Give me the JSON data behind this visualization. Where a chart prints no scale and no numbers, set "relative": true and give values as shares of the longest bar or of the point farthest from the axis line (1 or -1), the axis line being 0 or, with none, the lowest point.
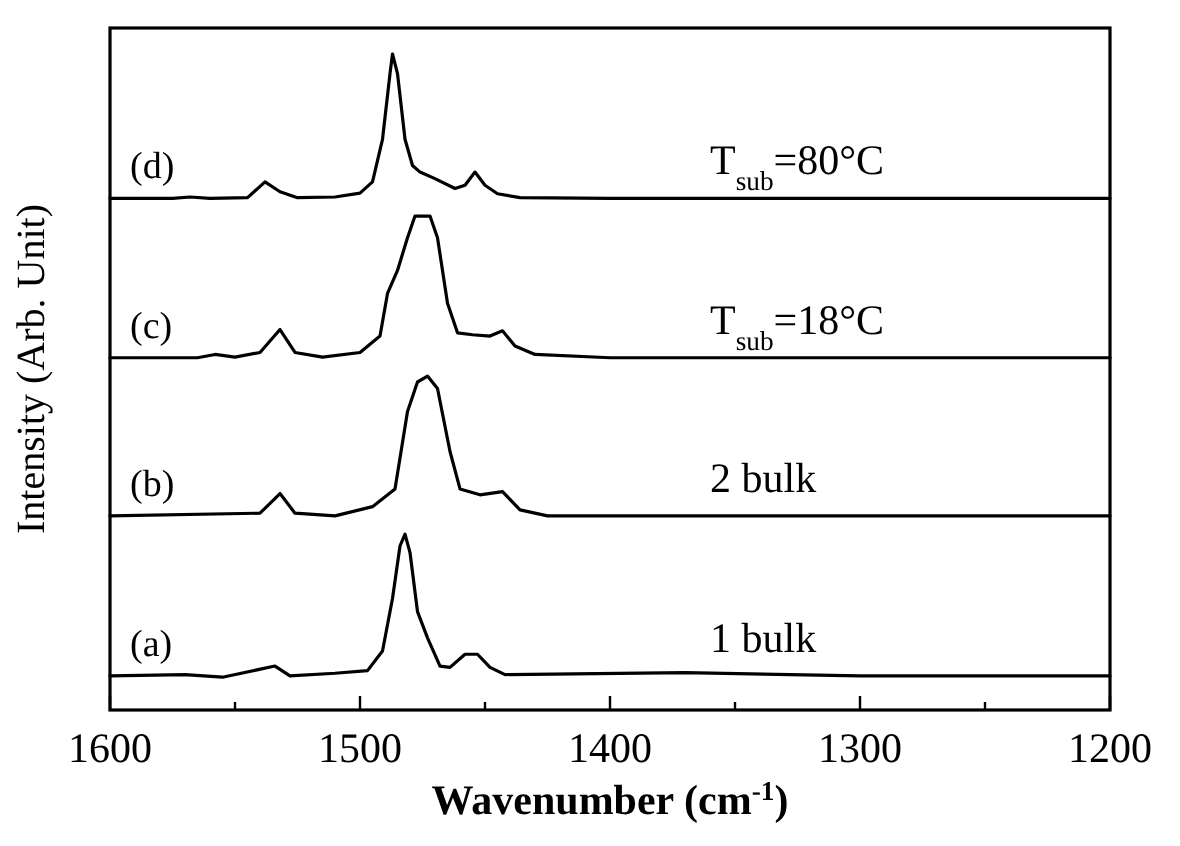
{
  "chart_data": {
    "type": "line",
    "relative": true,
    "xlabel": "Wavenumber (cm$^{-1}$)",
    "ylabel": "Intensity (Arb. Unit)",
    "xlim": [
      1600,
      1200
    ],
    "xticks": [
      1600,
      {
        "value": 1550,
        "label": null
      },
      1500,
      {
        "value": 1450,
        "label": null
      },
      1400,
      {
        "value": 1350,
        "label": null
      },
      1300,
      {
        "value": 1250,
        "label": null
      },
      1200
    ],
    "tick_labels": "x",
    "grid": false,
    "marker": "none",
    "line_style": "solid",
    "annotations": [
      "1 bulk",
      "2 bulk",
      "T$_{sub}$=18°C",
      "T$_{sub}$=80°C"
    ],
    "series": [
      {
        "name": "(a)",
        "color": "#000000",
        "x": [
          1600,
          1570,
          1555,
          1534,
          1528,
          1510,
          1497,
          1491,
          1487,
          1484,
          1482,
          1480,
          1477,
          1473,
          1468,
          1464,
          1458,
          1453,
          1448,
          1442,
          1370,
          1300,
          1200
        ],
        "values": [
          0.052,
          0.054,
          0.05,
          0.067,
          0.052,
          0.056,
          0.06,
          0.09,
          0.17,
          0.25,
          0.268,
          0.24,
          0.15,
          0.11,
          0.067,
          0.065,
          0.085,
          0.085,
          0.065,
          0.054,
          0.057,
          0.052,
          0.052
        ]
      },
      {
        "name": "(b)",
        "color": "#000000",
        "x": [
          1600,
          1540,
          1532,
          1526,
          1510,
          1495,
          1486,
          1481,
          1477,
          1473,
          1469,
          1464,
          1460,
          1452,
          1443,
          1436,
          1425,
          1200
        ],
        "values": [
          0.296,
          0.3,
          0.33,
          0.3,
          0.296,
          0.31,
          0.337,
          0.455,
          0.5,
          0.509,
          0.49,
          0.394,
          0.337,
          0.328,
          0.333,
          0.305,
          0.296,
          0.296
        ]
      },
      {
        "name": "(c)",
        "color": "#000000",
        "x": [
          1600,
          1565,
          1558,
          1550,
          1540,
          1532,
          1526,
          1515,
          1500,
          1492,
          1489,
          1485,
          1481,
          1478,
          1472,
          1469,
          1465,
          1461,
          1455,
          1448,
          1443,
          1438,
          1430,
          1400,
          1300,
          1200
        ],
        "values": [
          0.537,
          0.537,
          0.542,
          0.538,
          0.545,
          0.58,
          0.545,
          0.538,
          0.545,
          0.57,
          0.635,
          0.67,
          0.72,
          0.753,
          0.753,
          0.72,
          0.62,
          0.575,
          0.572,
          0.57,
          0.578,
          0.555,
          0.542,
          0.537,
          0.537,
          0.537
        ]
      },
      {
        "name": "(d)",
        "color": "#000000",
        "x": [
          1600,
          1575,
          1568,
          1560,
          1545,
          1538,
          1532,
          1525,
          1510,
          1500,
          1495,
          1491,
          1488,
          1487,
          1485,
          1482,
          1479,
          1476,
          1470,
          1462,
          1458,
          1454,
          1450,
          1445,
          1436,
          1400,
          1300,
          1200
        ],
        "values": [
          0.78,
          0.78,
          0.782,
          0.78,
          0.781,
          0.805,
          0.79,
          0.781,
          0.782,
          0.788,
          0.805,
          0.87,
          0.97,
          1.0,
          0.97,
          0.87,
          0.83,
          0.82,
          0.81,
          0.795,
          0.8,
          0.82,
          0.8,
          0.787,
          0.781,
          0.78,
          0.78,
          0.78
        ]
      }
    ]
  }
}
